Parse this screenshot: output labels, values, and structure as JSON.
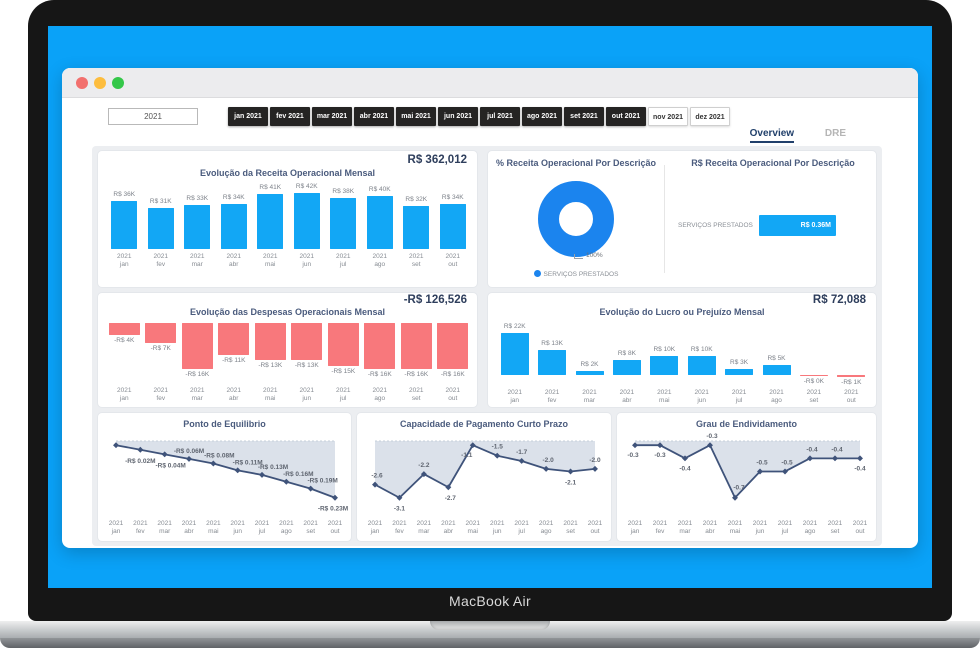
{
  "device": {
    "label": "MacBook Air"
  },
  "window_controls": {
    "close": "close",
    "minimize": "minimize",
    "zoom": "zoom"
  },
  "toolbar": {
    "year_value": "2021",
    "months": [
      {
        "label": "jan 2021",
        "selected": true
      },
      {
        "label": "fev 2021",
        "selected": true
      },
      {
        "label": "mar 2021",
        "selected": true
      },
      {
        "label": "abr 2021",
        "selected": true
      },
      {
        "label": "mai 2021",
        "selected": true
      },
      {
        "label": "jun 2021",
        "selected": true
      },
      {
        "label": "jul 2021",
        "selected": true
      },
      {
        "label": "ago 2021",
        "selected": true
      },
      {
        "label": "set 2021",
        "selected": true
      },
      {
        "label": "out 2021",
        "selected": true
      },
      {
        "label": "nov 2021",
        "selected": false
      },
      {
        "label": "dez 2021",
        "selected": false
      }
    ],
    "tabs": [
      {
        "label": "Overview",
        "active": true
      },
      {
        "label": "DRE",
        "active": false
      }
    ]
  },
  "colors": {
    "screen_blue": "#0aa2f8",
    "bar_blue": "#12a7f5",
    "donut_blue": "#1b84ee",
    "bar_red": "#f8787c",
    "line_slate": "#3f537a",
    "area_fill": "#d7dee8",
    "kpi_navy": "#2e3e5c"
  },
  "chart_data": [
    {
      "id": "receita",
      "type": "bar",
      "title": "Evolução da Receita Operacional Mensal",
      "kpi": "R$ 362,012",
      "year": "2021",
      "categories": [
        "jan",
        "fev",
        "mar",
        "abr",
        "mai",
        "jun",
        "jul",
        "ago",
        "set",
        "out"
      ],
      "values": [
        36,
        31,
        33,
        34,
        41,
        42,
        38,
        40,
        32,
        34
      ],
      "labels": [
        "R$ 36K",
        "R$ 31K",
        "R$ 33K",
        "R$ 34K",
        "R$ 41K",
        "R$ 42K",
        "R$ 38K",
        "R$ 40K",
        "R$ 32K",
        "R$ 34K"
      ]
    },
    {
      "id": "receita_pct",
      "type": "pie",
      "title": "% Receita Operacional Por Descrição",
      "slices": [
        {
          "label": "SERVIÇOS PRESTADOS",
          "value": 100,
          "display": "100%"
        }
      ],
      "legend": [
        "SERVIÇOS PRESTADOS"
      ]
    },
    {
      "id": "receita_desc",
      "type": "bar",
      "orientation": "horizontal",
      "title": "R$ Receita Operacional Por Descrição",
      "categories": [
        "SERVIÇOS PRESTADOS"
      ],
      "values": [
        0.36
      ],
      "labels": [
        "R$ 0.36M"
      ]
    },
    {
      "id": "despesas",
      "type": "bar",
      "title": "Evolução das Despesas Operacionais Mensal",
      "kpi": "-R$ 126,526",
      "year": "2021",
      "categories": [
        "jan",
        "fev",
        "mar",
        "abr",
        "mai",
        "jun",
        "jul",
        "ago",
        "set",
        "out"
      ],
      "values": [
        -4,
        -7,
        -16,
        -11,
        -13,
        -13,
        -15,
        -16,
        -16,
        -16
      ],
      "labels": [
        "-R$ 4K",
        "-R$ 7K",
        "-R$ 16K",
        "-R$ 11K",
        "-R$ 13K",
        "-R$ 13K",
        "-R$ 15K",
        "-R$ 16K",
        "-R$ 16K",
        "-R$ 16K"
      ]
    },
    {
      "id": "lucro",
      "type": "bar",
      "title": "Evolução do Lucro ou Prejuízo Mensal",
      "kpi": "R$ 72,088",
      "year": "2021",
      "categories": [
        "jan",
        "fev",
        "mar",
        "abr",
        "mai",
        "jun",
        "jul",
        "ago",
        "set",
        "out"
      ],
      "values": [
        22,
        13,
        2,
        8,
        10,
        10,
        3,
        5,
        -0.4,
        -1
      ],
      "labels": [
        "R$ 22K",
        "R$ 13K",
        "R$ 2K",
        "R$ 8K",
        "R$ 10K",
        "R$ 10K",
        "R$ 3K",
        "R$ 5K",
        "-R$ 0K",
        "-R$ 1K"
      ]
    },
    {
      "id": "ponto",
      "type": "area",
      "title": "Ponto de Equilibrio",
      "year": "2021",
      "categories": [
        "jan",
        "fev",
        "mar",
        "abr",
        "mai",
        "jun",
        "jul",
        "ago",
        "set",
        "out"
      ],
      "values": [
        0,
        -0.02,
        -0.04,
        -0.06,
        -0.08,
        -0.11,
        -0.13,
        -0.16,
        -0.19,
        -0.23
      ],
      "labels": [
        "",
        "-R$ 0.02M",
        "-R$ 0.04M",
        "-R$ 0.06M",
        "-R$ 0.08M",
        "-R$ 0.11M",
        "-R$ 0.13M",
        "-R$ 0.16M",
        "-R$ 0.19M",
        "-R$ 0.23M"
      ]
    },
    {
      "id": "capacidade",
      "type": "area",
      "title": "Capacidade de Pagamento Curto Prazo",
      "year": "2021",
      "categories": [
        "jan",
        "fev",
        "mar",
        "abr",
        "mai",
        "jun",
        "jul",
        "ago",
        "set",
        "out"
      ],
      "values": [
        -2.6,
        -3.1,
        -2.2,
        -2.7,
        -1.1,
        -1.5,
        -1.7,
        -2.0,
        -2.1,
        -2.0
      ],
      "labels": [
        "-2.6",
        "-3.1",
        "-2.2",
        "-2.7",
        "-1.1",
        "-1.5",
        "-1.7",
        "-2.0",
        "-2.1",
        "-2.0"
      ]
    },
    {
      "id": "grau",
      "type": "area",
      "title": "Grau de Endividamento",
      "year": "2021",
      "categories": [
        "jan",
        "fev",
        "mar",
        "abr",
        "mai",
        "jun",
        "jul",
        "ago",
        "set",
        "out"
      ],
      "values": [
        -0.3,
        -0.3,
        -0.4,
        -0.3,
        -0.7,
        -0.5,
        -0.5,
        -0.4,
        -0.4,
        -0.4
      ],
      "labels": [
        "-0.3",
        "-0.3",
        "-0.4",
        "-0.3",
        "-0.7",
        "-0.5",
        "-0.5",
        "-0.4",
        "-0.4",
        "-0.4"
      ]
    }
  ]
}
